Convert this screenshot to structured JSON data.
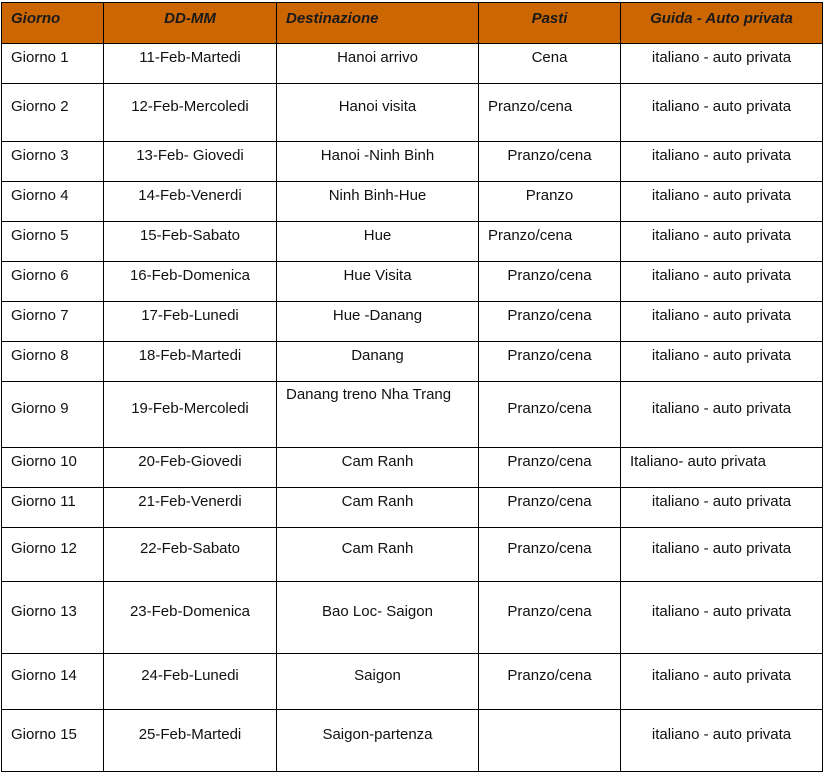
{
  "table": {
    "headers": [
      "Giorno",
      "DD-MM",
      "Destinazione",
      "Pasti",
      "Guida - Auto privata"
    ],
    "rows": [
      [
        "Giorno 1",
        "11-Feb-Martedi",
        "Hanoi arrivo",
        "Cena",
        "italiano - auto privata"
      ],
      [
        "Giorno 2",
        "12-Feb-Mercoledi",
        "Hanoi visita",
        "Pranzo/cena",
        "italiano - auto privata"
      ],
      [
        "Giorno 3",
        "13-Feb- Giovedi",
        "Hanoi -Ninh Binh",
        "Pranzo/cena",
        "italiano - auto privata"
      ],
      [
        "Giorno 4",
        "14-Feb-Venerdi",
        "Ninh Binh-Hue",
        "Pranzo",
        "italiano - auto privata"
      ],
      [
        "Giorno 5",
        "15-Feb-Sabato",
        "Hue",
        "Pranzo/cena",
        "italiano - auto privata"
      ],
      [
        "Giorno 6",
        "16-Feb-Domenica",
        "Hue Visita",
        "Pranzo/cena",
        "italiano - auto privata"
      ],
      [
        "Giorno 7",
        "17-Feb-Lunedi",
        "Hue -Danang",
        "Pranzo/cena",
        "italiano - auto privata"
      ],
      [
        "Giorno 8",
        "18-Feb-Martedi",
        "Danang",
        "Pranzo/cena",
        "italiano - auto privata"
      ],
      [
        "Giorno 9",
        "19-Feb-Mercoledi",
        "Danang treno Nha Trang",
        "Pranzo/cena",
        "italiano - auto privata"
      ],
      [
        "Giorno 10",
        "20-Feb-Giovedi",
        "Cam Ranh",
        "Pranzo/cena",
        "Italiano- auto privata"
      ],
      [
        "Giorno 11",
        "21-Feb-Venerdi",
        "Cam Ranh",
        "Pranzo/cena",
        "italiano - auto privata"
      ],
      [
        "Giorno 12",
        "22-Feb-Sabato",
        "Cam Ranh",
        "Pranzo/cena",
        "italiano - auto privata"
      ],
      [
        "Giorno 13",
        "23-Feb-Domenica",
        "Bao Loc- Saigon",
        "Pranzo/cena",
        "italiano - auto privata"
      ],
      [
        "Giorno 14",
        "24-Feb-Lunedi",
        "Saigon",
        "Pranzo/cena",
        "italiano - auto privata"
      ],
      [
        "Giorno 15",
        "25-Feb-Martedi",
        "Saigon-partenza",
        "",
        "italiano - auto privata"
      ]
    ]
  },
  "colors": {
    "header_bg": "#cc6600",
    "border": "#000000"
  }
}
